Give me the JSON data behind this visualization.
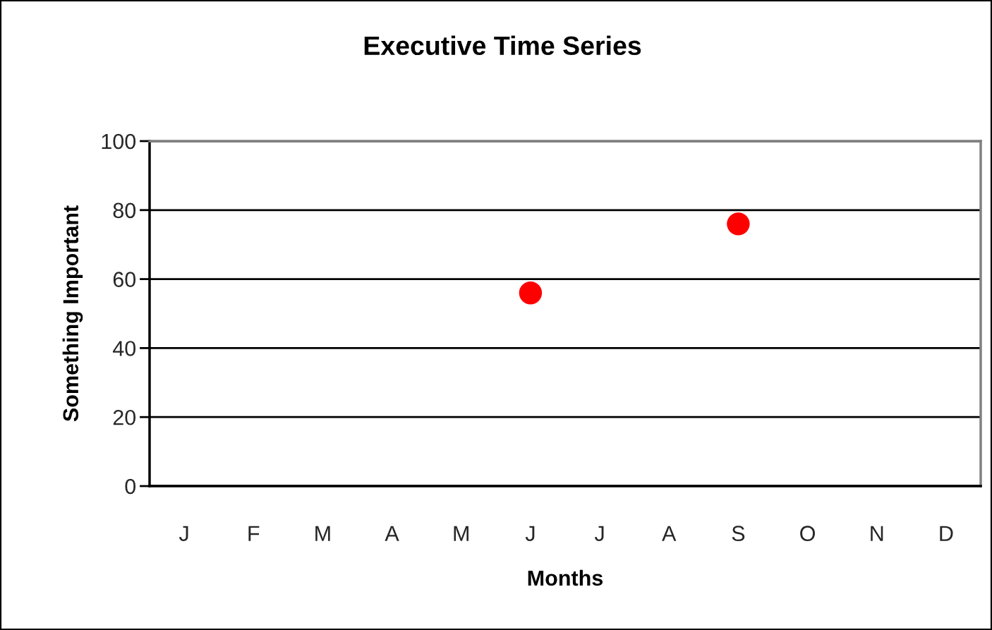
{
  "chart_data": {
    "type": "scatter",
    "title": "Executive Time Series",
    "xlabel": "Months",
    "ylabel": "Something Important",
    "categories": [
      "J",
      "F",
      "M",
      "A",
      "M",
      "J",
      "J",
      "A",
      "S",
      "O",
      "N",
      "D"
    ],
    "series": [
      {
        "color": "#ff0000",
        "values": [
          null,
          null,
          null,
          null,
          null,
          56,
          null,
          null,
          76,
          null,
          null,
          null
        ]
      }
    ],
    "ylim": [
      0,
      100
    ],
    "yticks": [
      0,
      20,
      40,
      60,
      80,
      100
    ],
    "grid": "y",
    "marker": "circle"
  }
}
